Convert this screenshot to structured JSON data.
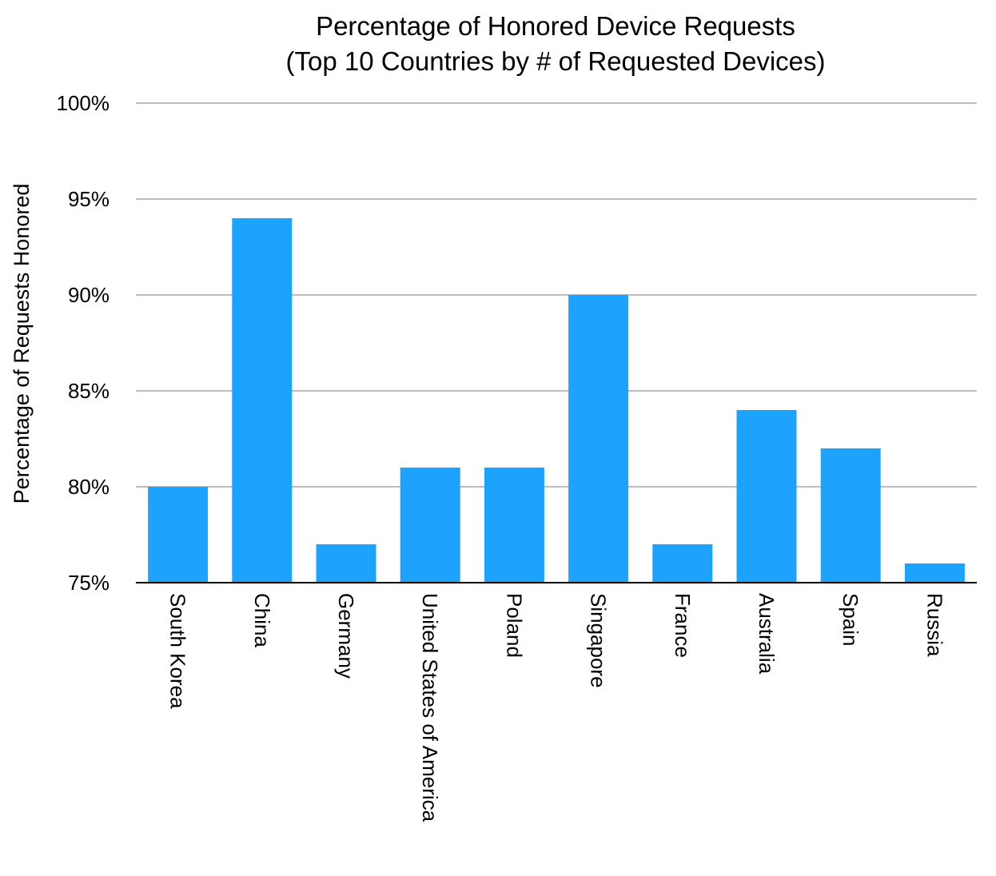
{
  "chart_data": {
    "type": "bar",
    "title": "Percentage of Honored Device Requests",
    "subtitle": "(Top 10 Countries by # of Requested Devices)",
    "xlabel": "",
    "ylabel": "Percentage of Requests Honored",
    "ylim": [
      75,
      100
    ],
    "yticks": [
      75,
      80,
      85,
      90,
      95,
      100
    ],
    "ytick_labels": [
      "75%",
      "80%",
      "85%",
      "90%",
      "95%",
      "100%"
    ],
    "categories": [
      "South Korea",
      "China",
      "Germany",
      "United States of America",
      "Poland",
      "Singapore",
      "France",
      "Australia",
      "Spain",
      "Russia"
    ],
    "values": [
      80,
      94,
      77,
      81,
      81,
      90,
      77,
      84,
      82,
      76
    ],
    "grid": true,
    "legend": "none",
    "colors": {
      "bar": "#1EA3FC",
      "grid": "#BDBDBD",
      "baseline": "#000000"
    }
  }
}
